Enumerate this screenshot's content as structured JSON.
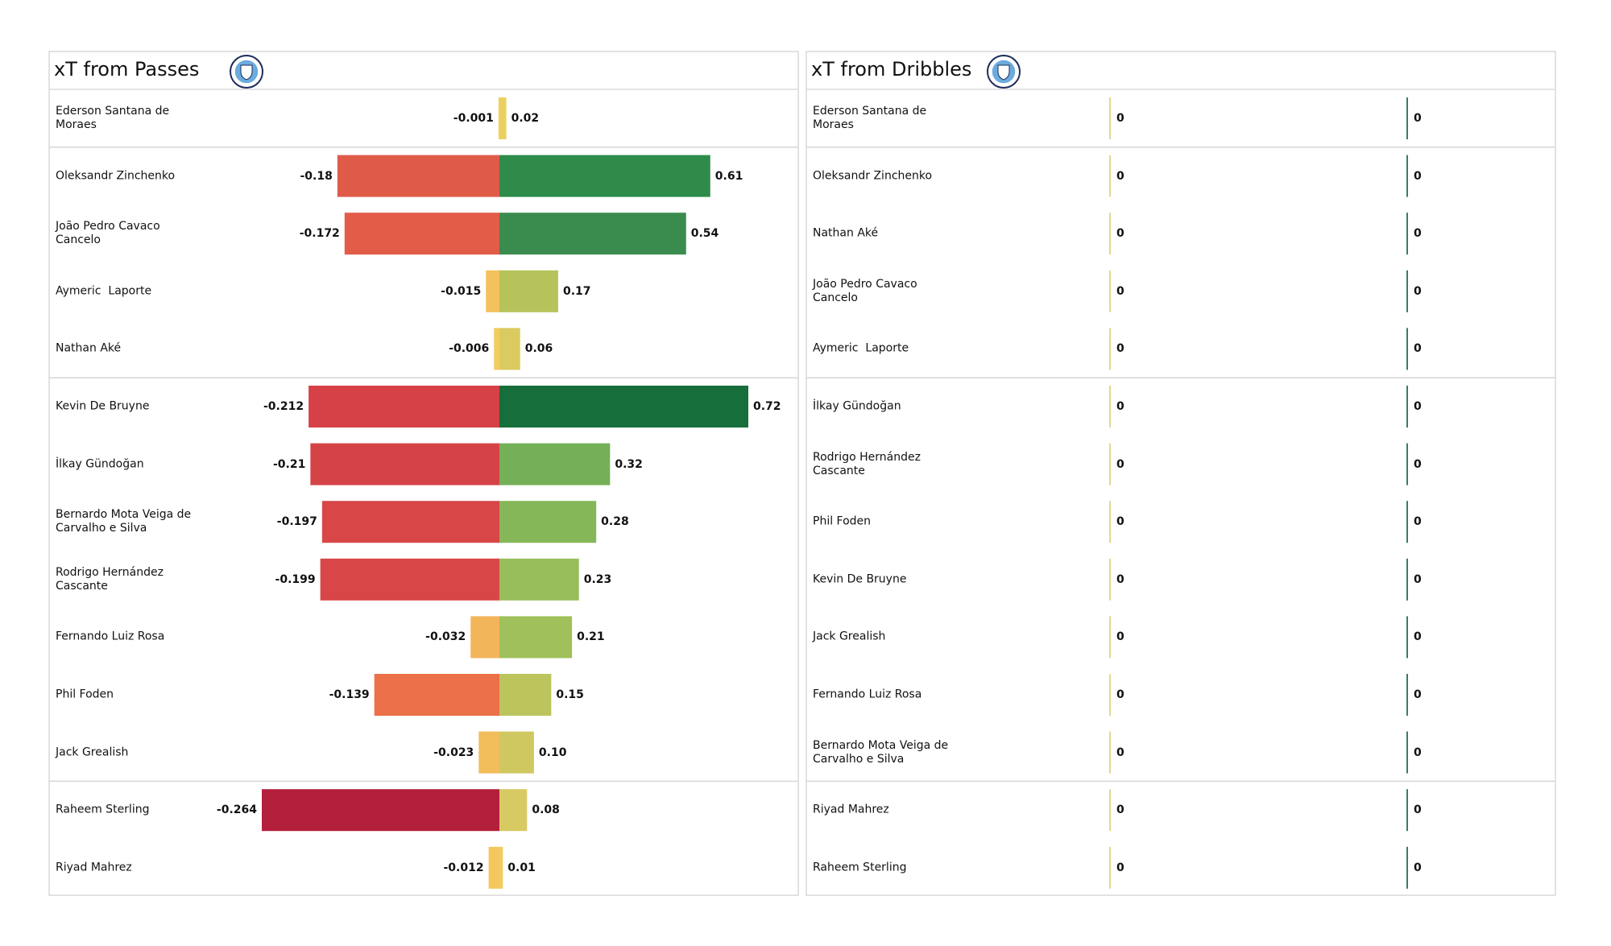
{
  "chart_data": [
    {
      "type": "diverging-bar",
      "title": "xT from Passes",
      "categories": [
        "Ederson Santana de Moraes",
        "Oleksandr Zinchenko",
        "João Pedro Cavaco Cancelo",
        "Aymeric  Laporte",
        "Nathan Aké",
        "Kevin De Bruyne",
        "İlkay Gündoğan",
        "Bernardo Mota Veiga de Carvalho e Silva",
        "Rodrigo Hernández Cascante",
        "Fernando Luiz Rosa",
        "Phil Foden",
        "Jack Grealish",
        "Raheem Sterling",
        "Riyad Mahrez"
      ],
      "series": [
        {
          "values": [
            -0.001,
            -0.18,
            -0.172,
            -0.015,
            -0.006,
            -0.212,
            -0.21,
            -0.197,
            -0.199,
            -0.032,
            -0.139,
            -0.023,
            -0.264,
            -0.012
          ],
          "colors": [
            "#f5d05e",
            "#e05a48",
            "#e25c48",
            "#f3c25c",
            "#f3cc5e",
            "#d54146",
            "#d54347",
            "#d84647",
            "#d84647",
            "#f2b55a",
            "#ec7048",
            "#f2bd5b",
            "#b41f3c",
            "#f3c75d"
          ],
          "xlim": [
            -0.264,
            0
          ]
        },
        {
          "values": [
            0.02,
            0.61,
            0.54,
            0.17,
            0.06,
            0.72,
            0.32,
            0.28,
            0.23,
            0.21,
            0.15,
            0.1,
            0.08,
            0.01
          ],
          "value_labels": [
            "0.02",
            "0.61",
            "0.54",
            "0.17",
            "0.06",
            "0.72",
            "0.32",
            "0.28",
            "0.23",
            "0.21",
            "0.15",
            "0.10",
            "0.08",
            "0.01"
          ],
          "colors": [
            "#ecd05e",
            "#2e8b4a",
            "#3a8c4e",
            "#b5c35a",
            "#d9cb60",
            "#166e3a",
            "#74b058",
            "#85b758",
            "#97be5a",
            "#a0c05b",
            "#bcc55c",
            "#cfc860",
            "#d7ca62",
            "#efcd5e"
          ],
          "xlim": [
            0,
            0.72
          ]
        }
      ]
    },
    {
      "type": "zero-lines",
      "title": "xT from Dribbles",
      "categories": [
        "Ederson Santana de Moraes",
        "Oleksandr Zinchenko",
        "Nathan Aké",
        "João Pedro Cavaco Cancelo",
        "Aymeric  Laporte",
        "İlkay Gündoğan",
        "Rodrigo Hernández Cascante",
        "Phil Foden",
        "Kevin De Bruyne",
        "Jack Grealish",
        "Fernando Luiz Rosa",
        "Bernardo Mota Veiga de Carvalho e Silva",
        "Riyad Mahrez",
        "Raheem Sterling"
      ],
      "series": [
        {
          "values": [
            0,
            0,
            0,
            0,
            0,
            0,
            0,
            0,
            0,
            0,
            0,
            0,
            0,
            0
          ],
          "color": "#e6d88e"
        },
        {
          "values": [
            0,
            0,
            0,
            0,
            0,
            0,
            0,
            0,
            0,
            0,
            0,
            0,
            0,
            0
          ],
          "color": "#3b7a6a"
        }
      ]
    }
  ]
}
